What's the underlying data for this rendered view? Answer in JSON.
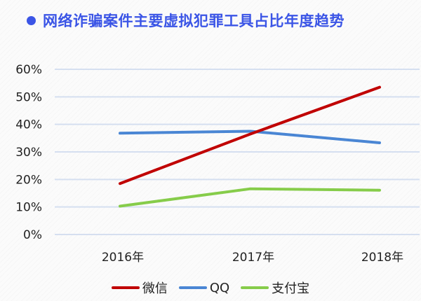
{
  "title": "网络诈骗案件主要虚拟犯罪工具占比年度趋势",
  "colors": {
    "title": "#3b55e6",
    "grid": "#d5dff0",
    "wechat": "#c00000",
    "qq": "#4a86d4",
    "alipay": "#86cc4a"
  },
  "chart_data": {
    "type": "line",
    "title": "网络诈骗案件主要虚拟犯罪工具占比年度趋势",
    "xlabel": "",
    "ylabel": "",
    "categories": [
      "2016年",
      "2017年",
      "2018年"
    ],
    "y_ticks": [
      "0%",
      "10%",
      "20%",
      "30%",
      "40%",
      "50%",
      "60%"
    ],
    "ylim": [
      0,
      0.6
    ],
    "grid": true,
    "legend_position": "bottom",
    "series": [
      {
        "name": "微信",
        "color": "#c00000",
        "values": [
          0.185,
          0.365,
          0.535
        ]
      },
      {
        "name": "QQ",
        "color": "#4a86d4",
        "values": [
          0.368,
          0.375,
          0.333
        ]
      },
      {
        "name": "支付宝",
        "color": "#86cc4a",
        "values": [
          0.103,
          0.166,
          0.161
        ]
      }
    ]
  }
}
